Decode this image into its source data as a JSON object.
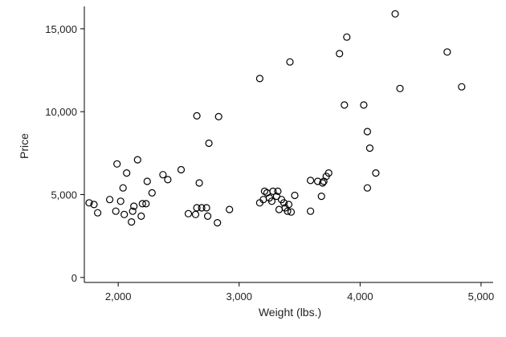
{
  "chart_data": {
    "type": "scatter",
    "xlabel": "Weight (lbs.)",
    "ylabel": "Price",
    "xlim": [
      1720,
      5100
    ],
    "ylim": [
      -300,
      16350
    ],
    "xticks": [
      2000,
      3000,
      4000,
      5000
    ],
    "xtick_labels": [
      "2,000",
      "3,000",
      "4,000",
      "5,000"
    ],
    "yticks": [
      0,
      5000,
      10000,
      15000
    ],
    "ytick_labels": [
      "0",
      "5,000",
      "10,000",
      "15,000"
    ],
    "grid": false,
    "series": [
      {
        "points": [
          [
            1760,
            4500
          ],
          [
            1800,
            4400
          ],
          [
            1830,
            3900
          ],
          [
            1930,
            4700
          ],
          [
            1980,
            4000
          ],
          [
            1990,
            6850
          ],
          [
            2020,
            4600
          ],
          [
            2040,
            5400
          ],
          [
            2050,
            3800
          ],
          [
            2070,
            6300
          ],
          [
            2110,
            3350
          ],
          [
            2120,
            4000
          ],
          [
            2130,
            4300
          ],
          [
            2160,
            7100
          ],
          [
            2190,
            3700
          ],
          [
            2200,
            4450
          ],
          [
            2230,
            4450
          ],
          [
            2240,
            5800
          ],
          [
            2280,
            5100
          ],
          [
            2370,
            6200
          ],
          [
            2410,
            5900
          ],
          [
            2520,
            6500
          ],
          [
            2580,
            3850
          ],
          [
            2640,
            3800
          ],
          [
            2650,
            9750
          ],
          [
            2650,
            4200
          ],
          [
            2670,
            5700
          ],
          [
            2690,
            4200
          ],
          [
            2730,
            4200
          ],
          [
            2740,
            3700
          ],
          [
            2750,
            8100
          ],
          [
            2820,
            3300
          ],
          [
            2830,
            9700
          ],
          [
            2920,
            4100
          ],
          [
            3170,
            4500
          ],
          [
            3170,
            12000
          ],
          [
            3200,
            4700
          ],
          [
            3210,
            5200
          ],
          [
            3230,
            5100
          ],
          [
            3250,
            4800
          ],
          [
            3270,
            4600
          ],
          [
            3280,
            5200
          ],
          [
            3310,
            4900
          ],
          [
            3320,
            5200
          ],
          [
            3330,
            4100
          ],
          [
            3350,
            4700
          ],
          [
            3370,
            4500
          ],
          [
            3380,
            4200
          ],
          [
            3400,
            4000
          ],
          [
            3410,
            4400
          ],
          [
            3420,
            13000
          ],
          [
            3430,
            3950
          ],
          [
            3460,
            4950
          ],
          [
            3590,
            5850
          ],
          [
            3590,
            4000
          ],
          [
            3650,
            5800
          ],
          [
            3680,
            4900
          ],
          [
            3690,
            5700
          ],
          [
            3700,
            5800
          ],
          [
            3720,
            6100
          ],
          [
            3740,
            6300
          ],
          [
            3830,
            13500
          ],
          [
            3870,
            10400
          ],
          [
            3890,
            14500
          ],
          [
            4030,
            10400
          ],
          [
            4060,
            8800
          ],
          [
            4060,
            5400
          ],
          [
            4080,
            7800
          ],
          [
            4130,
            6300
          ],
          [
            4290,
            15900
          ],
          [
            4330,
            11400
          ],
          [
            4720,
            13600
          ],
          [
            4840,
            11500
          ]
        ]
      }
    ]
  }
}
